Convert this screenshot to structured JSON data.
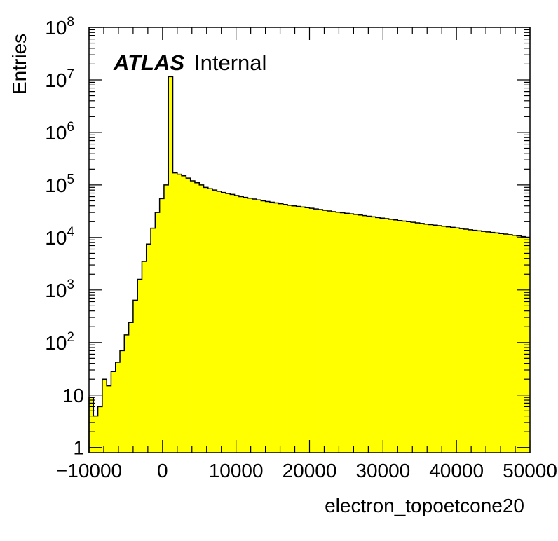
{
  "chart_data": {
    "type": "histogram",
    "yscale": "log",
    "xlabel": "electron_topoetcone20",
    "ylabel": "Entries",
    "xlim": [
      -10000,
      50000
    ],
    "ylim": [
      0.8,
      100000000
    ],
    "fill_color": "#ffff00",
    "line_color": "#000000",
    "annotation": {
      "experiment": "ATLAS",
      "status": "Internal"
    },
    "x_ticks": [
      {
        "value": -10000,
        "label": "−10000"
      },
      {
        "value": 0,
        "label": "0"
      },
      {
        "value": 10000,
        "label": "10000"
      },
      {
        "value": 20000,
        "label": "20000"
      },
      {
        "value": 30000,
        "label": "30000"
      },
      {
        "value": 40000,
        "label": "40000"
      },
      {
        "value": 50000,
        "label": "50000"
      }
    ],
    "y_ticks": [
      {
        "value": 1,
        "base": "1",
        "exp": ""
      },
      {
        "value": 10,
        "base": "10",
        "exp": ""
      },
      {
        "value": 100,
        "base": "10",
        "exp": "2"
      },
      {
        "value": 1000,
        "base": "10",
        "exp": "3"
      },
      {
        "value": 10000,
        "base": "10",
        "exp": "4"
      },
      {
        "value": 100000,
        "base": "10",
        "exp": "5"
      },
      {
        "value": 1000000,
        "base": "10",
        "exp": "6"
      },
      {
        "value": 10000000,
        "base": "10",
        "exp": "7"
      },
      {
        "value": 100000000,
        "base": "10",
        "exp": "8"
      }
    ],
    "bin_width": 600,
    "bin_start": -10000,
    "counts": [
      9,
      4,
      6,
      20,
      15,
      28,
      42,
      70,
      140,
      240,
      640,
      1600,
      3500,
      7500,
      15000,
      30000,
      55000,
      100000,
      11500000,
      170000,
      160000,
      150000,
      135000,
      120000,
      110000,
      100000,
      90000,
      85000,
      80000,
      76000,
      72000,
      69000,
      66000,
      63000,
      60000,
      58000,
      56000,
      54000,
      52000,
      50000,
      48500,
      47000,
      45500,
      44000,
      42500,
      41000,
      40000,
      39000,
      38000,
      37000,
      36000,
      35000,
      34000,
      33000,
      32000,
      31000,
      30300,
      29600,
      28900,
      28200,
      27500,
      26800,
      26100,
      25400,
      24700,
      24000,
      23400,
      22800,
      22200,
      21600,
      21000,
      20500,
      20000,
      19500,
      19000,
      18500,
      18000,
      17600,
      17200,
      16800,
      16400,
      16000,
      15600,
      15200,
      14800,
      14400,
      14000,
      13700,
      13400,
      13100,
      12800,
      12500,
      12200,
      11900,
      11600,
      11300,
      11000,
      10700,
      10400,
      10100
    ]
  }
}
